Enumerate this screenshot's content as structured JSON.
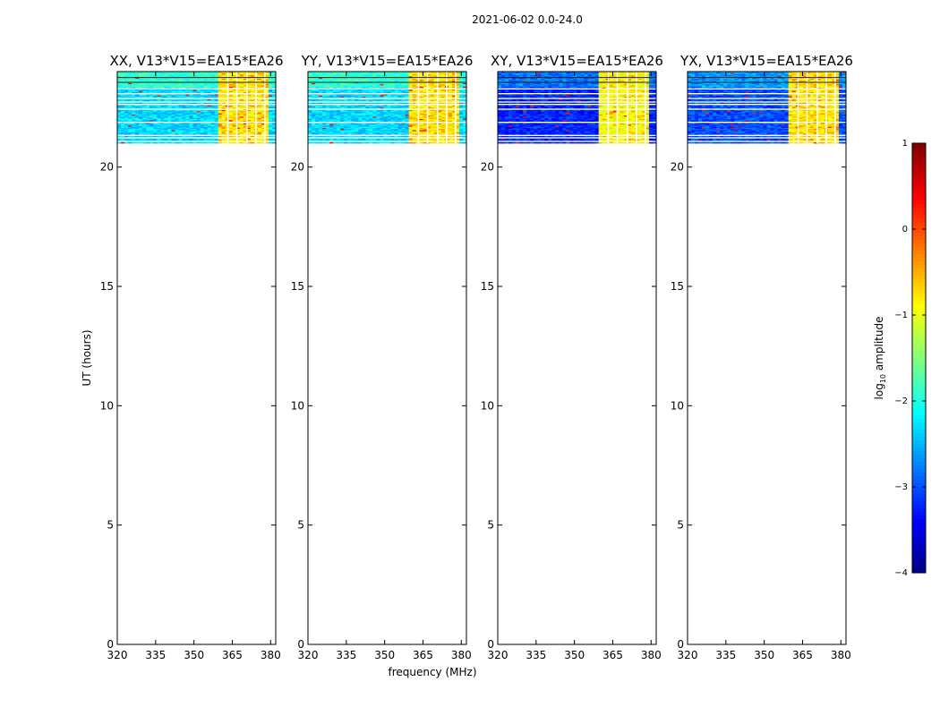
{
  "figure_title": "2021-06-02 0.0-24.0",
  "chart_data": {
    "type": "heatmap",
    "suptitle": "2021-06-02 0.0-24.0",
    "xlabel": "frequency (MHz)",
    "ylabel": "UT (hours)",
    "xlim": [
      320,
      382
    ],
    "ylim": [
      0,
      24
    ],
    "x_ticks": [
      "320",
      "335",
      "350",
      "365",
      "380"
    ],
    "x_tick_values": [
      320,
      335,
      350,
      365,
      380
    ],
    "y_ticks": [
      "0",
      "5",
      "10",
      "15",
      "20"
    ],
    "y_tick_values": [
      0,
      5,
      10,
      15,
      20
    ],
    "data_time_range_hours": [
      21.0,
      24.0
    ],
    "panels": [
      {
        "title": "XX, V13*V15=EA15*EA26",
        "background_log10_amp": -2.3,
        "band_log10_amp": -0.8
      },
      {
        "title": "YY, V13*V15=EA15*EA26",
        "background_log10_amp": -2.3,
        "band_log10_amp": -0.8
      },
      {
        "title": "XY, V13*V15=EA15*EA26",
        "background_log10_amp": -3.2,
        "band_log10_amp": -0.9
      },
      {
        "title": "YX, V13*V15=EA15*EA26",
        "background_log10_amp": -3.0,
        "band_log10_amp": -0.8
      }
    ],
    "colorbar": {
      "label": "log10 amplitude",
      "label_main": "log",
      "label_sub": "10",
      "label_rest": " amplitude",
      "range": [
        -4,
        1
      ],
      "ticks": [
        "1",
        "0",
        "−1",
        "−2",
        "−3",
        "−4"
      ],
      "tick_values": [
        1,
        0,
        -1,
        -2,
        -3,
        -4
      ],
      "colormap": "jet"
    }
  }
}
